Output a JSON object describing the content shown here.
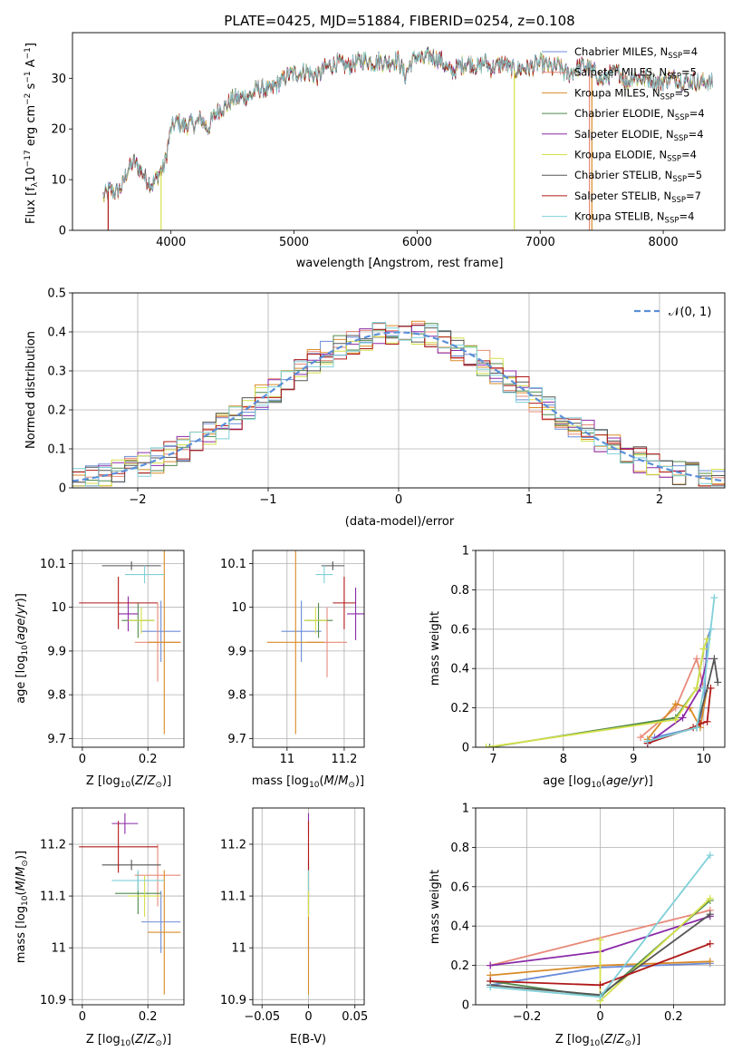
{
  "chart_data": [
    {
      "id": "spectrum",
      "type": "line",
      "title": "PLATE=0425, MJD=51884, FIBERID=0254, z=0.108",
      "xlabel": "wavelength [Angstrom, rest frame]",
      "ylabel": "Flux [f_λ10^{-17} erg cm^{-2} s^{-1} A^{-1}]",
      "xlim": [
        3200,
        8500
      ],
      "ylim": [
        0,
        39
      ],
      "xticks": [
        4000,
        5000,
        6000,
        7000,
        8000
      ],
      "yticks": [
        0,
        10,
        20,
        30
      ],
      "grid": false,
      "legend_position": "top-right",
      "series": [
        {
          "name": "Chabrier MILES, N_SSP=4",
          "color": "#6b8bd8"
        },
        {
          "name": "Salpeter MILES, N_SSP=5",
          "color": "#e88a7a"
        },
        {
          "name": "Kroupa MILES, N_SSP=5",
          "color": "#d98b27"
        },
        {
          "name": "Chabrier ELODIE, N_SSP=4",
          "color": "#4f8a4a"
        },
        {
          "name": "Salpeter ELODIE, N_SSP=4",
          "color": "#8a2aa8"
        },
        {
          "name": "Kroupa ELODIE, N_SSP=4",
          "color": "#d4e04a"
        },
        {
          "name": "Chabrier STELIB, N_SSP=5",
          "color": "#555555"
        },
        {
          "name": "Salpeter STELIB, N_SSP=7",
          "color": "#b01818"
        },
        {
          "name": "Kroupa STELIB, N_SSP=4",
          "color": "#7fd0d8"
        }
      ],
      "spectrum_points": [
        [
          3450,
          6.5
        ],
        [
          3500,
          8
        ],
        [
          3550,
          7.5
        ],
        [
          3600,
          8.5
        ],
        [
          3650,
          12
        ],
        [
          3700,
          13.5
        ],
        [
          3750,
          12
        ],
        [
          3800,
          10
        ],
        [
          3850,
          9
        ],
        [
          3900,
          11
        ],
        [
          3950,
          13
        ],
        [
          4000,
          20
        ],
        [
          4050,
          21.5
        ],
        [
          4100,
          20.5
        ],
        [
          4150,
          21
        ],
        [
          4200,
          21
        ],
        [
          4250,
          22
        ],
        [
          4300,
          20
        ],
        [
          4350,
          22.5
        ],
        [
          4400,
          24
        ],
        [
          4450,
          24.5
        ],
        [
          4500,
          26
        ],
        [
          4550,
          26
        ],
        [
          4600,
          26.5
        ],
        [
          4650,
          26.5
        ],
        [
          4700,
          28
        ],
        [
          4750,
          28
        ],
        [
          4800,
          27.5
        ],
        [
          4850,
          28.5
        ],
        [
          4900,
          29.5
        ],
        [
          4950,
          30.5
        ],
        [
          5000,
          31
        ],
        [
          5050,
          31
        ],
        [
          5100,
          31.5
        ],
        [
          5150,
          30.5
        ],
        [
          5200,
          30.5
        ],
        [
          5250,
          32
        ],
        [
          5300,
          32.5
        ],
        [
          5350,
          33
        ],
        [
          5400,
          32.5
        ],
        [
          5450,
          32.5
        ],
        [
          5500,
          33
        ],
        [
          5550,
          33.5
        ],
        [
          5600,
          33.5
        ],
        [
          5650,
          33
        ],
        [
          5700,
          33.5
        ],
        [
          5750,
          33
        ],
        [
          5800,
          33.5
        ],
        [
          5850,
          33.5
        ],
        [
          5900,
          30.5
        ],
        [
          5950,
          33
        ],
        [
          6000,
          34.5
        ],
        [
          6050,
          33.5
        ],
        [
          6100,
          34.5
        ],
        [
          6150,
          34
        ],
        [
          6200,
          33.5
        ],
        [
          6250,
          31.5
        ],
        [
          6300,
          31.5
        ],
        [
          6350,
          32.5
        ],
        [
          6400,
          33
        ],
        [
          6450,
          33
        ],
        [
          6500,
          32
        ],
        [
          6550,
          33.5
        ],
        [
          6600,
          32
        ],
        [
          6650,
          32.5
        ],
        [
          6700,
          33
        ],
        [
          6750,
          32
        ],
        [
          6800,
          31.5
        ],
        [
          6850,
          32
        ],
        [
          6900,
          32
        ],
        [
          6950,
          32.5
        ],
        [
          7000,
          33
        ],
        [
          7050,
          32.5
        ],
        [
          7100,
          32
        ],
        [
          7150,
          32.5
        ],
        [
          7200,
          31
        ],
        [
          7250,
          31
        ],
        [
          7300,
          32
        ],
        [
          7350,
          32.5
        ],
        [
          7400,
          32
        ],
        [
          7450,
          31
        ],
        [
          7500,
          29.5
        ],
        [
          7550,
          30.5
        ],
        [
          7600,
          31
        ],
        [
          7650,
          31
        ],
        [
          7700,
          29
        ],
        [
          7750,
          30.5
        ],
        [
          7800,
          30
        ],
        [
          7850,
          30
        ],
        [
          7900,
          30
        ],
        [
          7950,
          29
        ],
        [
          8000,
          29.5
        ],
        [
          8050,
          30
        ],
        [
          8100,
          30
        ],
        [
          8150,
          29.5
        ],
        [
          8200,
          29.5
        ],
        [
          8250,
          29.5
        ],
        [
          8300,
          29
        ],
        [
          8350,
          29.5
        ],
        [
          8400,
          29
        ]
      ],
      "spectrum_drops": [
        {
          "series": 7,
          "x": 3490,
          "y": 0
        },
        {
          "series": 5,
          "x": 3920,
          "y": 0
        },
        {
          "series": 5,
          "x": 6790,
          "y": 0
        },
        {
          "series": 2,
          "x": 7420,
          "y": 0
        },
        {
          "series": 1,
          "x": 7400,
          "y": 0
        }
      ]
    },
    {
      "id": "residuals",
      "type": "step",
      "xlabel": "(data-model)/error",
      "ylabel": "Normed distribution",
      "xlim": [
        -2.5,
        2.5
      ],
      "ylim": [
        0,
        0.5
      ],
      "xticks": [
        -2,
        -1,
        0,
        1,
        2
      ],
      "yticks": [
        0,
        0.1,
        0.2,
        0.3,
        0.4,
        0.5
      ],
      "grid": true,
      "legend_position": "top-right",
      "legend_label": "𝒩(0, 1)",
      "gaussian": {
        "mean": 0,
        "sigma": 1,
        "color": "#5a8fd8"
      },
      "bin_width": 0.1,
      "hist_seeds": [
        3,
        7,
        11,
        13,
        17,
        19,
        23,
        29,
        31
      ]
    },
    {
      "id": "z-age",
      "type": "errorbar",
      "xlabel": "Z [log10(Z/Z⊙)]",
      "ylabel": "age  [log10(age/yr)]",
      "xlim": [
        -0.03,
        0.31
      ],
      "ylim": [
        9.68,
        10.13
      ],
      "xticks": [
        0.0,
        0.2
      ],
      "yticks": [
        9.7,
        9.8,
        9.9,
        10.0,
        10.1
      ],
      "grid": true,
      "points": [
        {
          "series": 0,
          "x": 0.24,
          "y": 9.945,
          "xerr": 0.06,
          "yerr": 0.07
        },
        {
          "series": 1,
          "x": 0.23,
          "y": 9.92,
          "xerr": 0.07,
          "yerr": 0.09
        },
        {
          "series": 2,
          "x": 0.25,
          "y": 9.92,
          "xerr": 0.05,
          "yerr": 0.21
        },
        {
          "series": 3,
          "x": 0.17,
          "y": 9.97,
          "xerr": 0.05,
          "yerr": 0.04
        },
        {
          "series": 4,
          "x": 0.14,
          "y": 9.985,
          "xerr": 0.03,
          "yerr": 0.04
        },
        {
          "series": 5,
          "x": 0.18,
          "y": 9.97,
          "xerr": 0.04,
          "yerr": 0.03
        },
        {
          "series": 6,
          "x": 0.15,
          "y": 10.095,
          "xerr": 0.09,
          "yerr": 0.01
        },
        {
          "series": 7,
          "x": 0.11,
          "y": 10.01,
          "xerr": 0.12,
          "yerr": 0.06
        },
        {
          "series": 8,
          "x": 0.19,
          "y": 10.075,
          "xerr": 0.06,
          "yerr": 0.02
        }
      ]
    },
    {
      "id": "mass-age",
      "type": "errorbar",
      "xlabel": "mass [log10(M/M⊙)]",
      "ylabel": "",
      "xlim": [
        10.88,
        11.27
      ],
      "ylim": [
        9.68,
        10.13
      ],
      "xticks": [
        11.0,
        11.2
      ],
      "yticks": [
        9.7,
        9.8,
        9.9,
        10.0,
        10.1
      ],
      "grid": true,
      "points": [
        {
          "series": 0,
          "x": 11.05,
          "y": 9.945,
          "xerr": 0.07,
          "yerr": 0.07
        },
        {
          "series": 1,
          "x": 11.14,
          "y": 9.92,
          "xerr": 0.07,
          "yerr": 0.08
        },
        {
          "series": 2,
          "x": 11.03,
          "y": 9.92,
          "xerr": 0.1,
          "yerr": 0.21
        },
        {
          "series": 3,
          "x": 11.11,
          "y": 9.97,
          "xerr": 0.05,
          "yerr": 0.04
        },
        {
          "series": 4,
          "x": 11.24,
          "y": 9.985,
          "xerr": 0.03,
          "yerr": 0.06
        },
        {
          "series": 5,
          "x": 11.1,
          "y": 9.97,
          "xerr": 0.04,
          "yerr": 0.03
        },
        {
          "series": 6,
          "x": 11.16,
          "y": 10.095,
          "xerr": 0.04,
          "yerr": 0.01
        },
        {
          "series": 7,
          "x": 11.2,
          "y": 10.01,
          "xerr": 0.04,
          "yerr": 0.06
        },
        {
          "series": 8,
          "x": 11.13,
          "y": 10.075,
          "xerr": 0.03,
          "yerr": 0.02
        }
      ]
    },
    {
      "id": "age-weight",
      "type": "line",
      "xlabel": "age  [log10(age/yr)]",
      "ylabel": "mass weight",
      "xlim": [
        6.75,
        10.3
      ],
      "ylim": [
        0,
        1.0
      ],
      "xticks": [
        7,
        8,
        9,
        10
      ],
      "yticks": [
        0.0,
        0.2,
        0.4,
        0.6,
        0.8,
        1.0
      ],
      "grid": true,
      "series_points": [
        {
          "series": 0,
          "x": [
            9.3,
            9.9,
            10.0,
            10.05,
            10.1
          ],
          "y": [
            0.05,
            0.1,
            0.2,
            0.55,
            0.6
          ]
        },
        {
          "series": 1,
          "x": [
            9.1,
            9.6,
            9.9,
            10.0
          ],
          "y": [
            0.05,
            0.2,
            0.45,
            0.3
          ]
        },
        {
          "series": 2,
          "x": [
            9.2,
            9.6,
            9.8,
            9.95,
            10.05
          ],
          "y": [
            0.04,
            0.22,
            0.2,
            0.1,
            0.3
          ]
        },
        {
          "series": 3,
          "x": [
            6.95,
            9.6,
            9.9,
            10.0
          ],
          "y": [
            0.0,
            0.15,
            0.3,
            0.5
          ]
        },
        {
          "series": 4,
          "x": [
            9.2,
            9.7,
            9.95,
            10.05
          ],
          "y": [
            0.02,
            0.15,
            0.3,
            0.45
          ]
        },
        {
          "series": 5,
          "x": [
            6.9,
            9.6,
            9.9,
            10.0,
            10.05
          ],
          "y": [
            0.0,
            0.14,
            0.3,
            0.5,
            0.55
          ]
        },
        {
          "series": 6,
          "x": [
            9.2,
            9.9,
            10.05,
            10.15,
            10.2
          ],
          "y": [
            0.03,
            0.1,
            0.3,
            0.45,
            0.33
          ]
        },
        {
          "series": 7,
          "x": [
            9.2,
            9.85,
            9.95,
            10.05,
            10.1
          ],
          "y": [
            0.02,
            0.1,
            0.12,
            0.13,
            0.3
          ]
        },
        {
          "series": 8,
          "x": [
            9.2,
            9.9,
            10.0,
            10.1,
            10.15
          ],
          "y": [
            0.03,
            0.1,
            0.3,
            0.6,
            0.76
          ]
        }
      ]
    },
    {
      "id": "z-mass",
      "type": "errorbar",
      "xlabel": "Z [log10(Z/Z⊙)]",
      "ylabel": "mass [log10(M/M⊙)]",
      "xlim": [
        -0.03,
        0.31
      ],
      "ylim": [
        10.89,
        11.27
      ],
      "xticks": [
        0.0,
        0.2
      ],
      "yticks": [
        10.9,
        11.0,
        11.1,
        11.2
      ],
      "grid": true,
      "points": [
        {
          "series": 0,
          "x": 0.24,
          "y": 11.05,
          "xerr": 0.06,
          "yerr": 0.06
        },
        {
          "series": 1,
          "x": 0.23,
          "y": 11.14,
          "xerr": 0.07,
          "yerr": 0.06
        },
        {
          "series": 2,
          "x": 0.25,
          "y": 11.03,
          "xerr": 0.05,
          "yerr": 0.12
        },
        {
          "series": 3,
          "x": 0.17,
          "y": 11.105,
          "xerr": 0.07,
          "yerr": 0.04
        },
        {
          "series": 4,
          "x": 0.13,
          "y": 11.24,
          "xerr": 0.04,
          "yerr": 0.02
        },
        {
          "series": 5,
          "x": 0.19,
          "y": 11.1,
          "xerr": 0.05,
          "yerr": 0.04
        },
        {
          "series": 6,
          "x": 0.15,
          "y": 11.16,
          "xerr": 0.09,
          "yerr": 0.01
        },
        {
          "series": 7,
          "x": 0.11,
          "y": 11.195,
          "xerr": 0.12,
          "yerr": 0.05
        },
        {
          "series": 8,
          "x": 0.17,
          "y": 11.13,
          "xerr": 0.08,
          "yerr": 0.02
        }
      ]
    },
    {
      "id": "ebv-mass",
      "type": "errorbar",
      "xlabel": "E(B-V)",
      "ylabel": "",
      "xlim": [
        -0.06,
        0.06
      ],
      "ylim": [
        10.89,
        11.27
      ],
      "xticks": [
        -0.05,
        0.0,
        0.05
      ],
      "yticks": [
        10.9,
        11.0,
        11.1,
        11.2
      ],
      "grid": true,
      "points": [
        {
          "series": 0,
          "x": 0.0,
          "y": 11.05,
          "xerr": 0.0,
          "yerr": 0.06
        },
        {
          "series": 1,
          "x": 0.0,
          "y": 11.14,
          "xerr": 0.0,
          "yerr": 0.06
        },
        {
          "series": 2,
          "x": 0.0,
          "y": 11.03,
          "xerr": 0.0,
          "yerr": 0.12
        },
        {
          "series": 3,
          "x": 0.0,
          "y": 11.105,
          "xerr": 0.0,
          "yerr": 0.04
        },
        {
          "series": 4,
          "x": 0.0,
          "y": 11.24,
          "xerr": 0.0,
          "yerr": 0.02
        },
        {
          "series": 5,
          "x": 0.0,
          "y": 11.1,
          "xerr": 0.0,
          "yerr": 0.04
        },
        {
          "series": 6,
          "x": 0.0,
          "y": 11.16,
          "xerr": 0.0,
          "yerr": 0.01
        },
        {
          "series": 7,
          "x": 0.0,
          "y": 11.195,
          "xerr": 0.0,
          "yerr": 0.05
        },
        {
          "series": 8,
          "x": 0.0,
          "y": 11.13,
          "xerr": 0.0,
          "yerr": 0.02
        }
      ]
    },
    {
      "id": "z-weight",
      "type": "line",
      "xlabel": "Z [log10(Z/Z⊙)]",
      "ylabel": "mass weight",
      "xlim": [
        -0.34,
        0.34
      ],
      "ylim": [
        0,
        1.0
      ],
      "xticks": [
        -0.2,
        0.0,
        0.2
      ],
      "yticks": [
        0.0,
        0.2,
        0.4,
        0.6,
        0.8,
        1.0
      ],
      "grid": true,
      "series_points": [
        {
          "series": 0,
          "x": [
            -0.3,
            0.0,
            0.3
          ],
          "y": [
            0.1,
            0.19,
            0.21
          ]
        },
        {
          "series": 1,
          "x": [
            -0.3,
            0.3
          ],
          "y": [
            0.2,
            0.48
          ]
        },
        {
          "series": 2,
          "x": [
            -0.3,
            0.0,
            0.3
          ],
          "y": [
            0.15,
            0.2,
            0.22
          ]
        },
        {
          "series": 3,
          "x": [
            -0.3,
            0.0,
            0.3
          ],
          "y": [
            0.12,
            0.04,
            0.53
          ]
        },
        {
          "series": 4,
          "x": [
            -0.3,
            0.0,
            0.3
          ],
          "y": [
            0.2,
            0.27,
            0.45
          ]
        },
        {
          "series": 5,
          "x": [
            0.0,
            0.0,
            0.3
          ],
          "y": [
            0.33,
            0.02,
            0.54
          ]
        },
        {
          "series": 6,
          "x": [
            -0.3,
            0.0,
            0.3
          ],
          "y": [
            0.1,
            0.05,
            0.46
          ]
        },
        {
          "series": 7,
          "x": [
            -0.3,
            0.0,
            0.3
          ],
          "y": [
            0.12,
            0.1,
            0.31
          ]
        },
        {
          "series": 8,
          "x": [
            -0.3,
            0.0,
            0.3
          ],
          "y": [
            0.09,
            0.04,
            0.76
          ]
        }
      ]
    }
  ]
}
